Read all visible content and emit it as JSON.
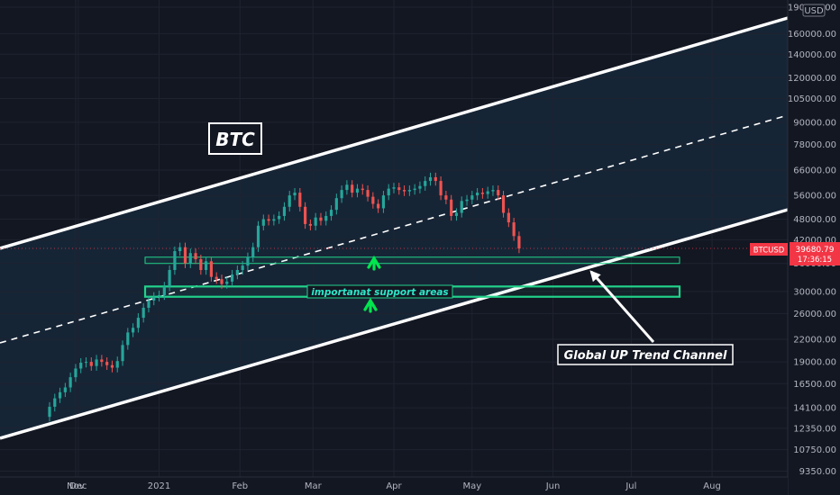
{
  "chart_data": {
    "type": "candlestick",
    "title": "BTC",
    "symbol": "BTCUSD",
    "currency": "USD",
    "last_price": "39680.79",
    "countdown": "17:36:15",
    "y_scale": "log",
    "ylim": [
      9000,
      190000
    ],
    "y_ticks": [
      9350,
      10750,
      12350,
      14100,
      16500,
      19000,
      22000,
      26000,
      30000,
      36000,
      42000,
      48000,
      56000,
      66000,
      78000,
      90000,
      105000,
      120000,
      140000,
      160000,
      190000
    ],
    "y_tick_labels": [
      "9350.00",
      "10750.00",
      "12350.00",
      "14100.00",
      "16500.00",
      "19000.00",
      "22000.00",
      "26000.00",
      "30000.00",
      "36000.00",
      "42000.00",
      "48000.00",
      "56000.00",
      "66000.00",
      "78000.00",
      "90000.00",
      "105000.00",
      "120000.00",
      "140000.00",
      "160000.00",
      "190000.00"
    ],
    "x_ticks": [
      {
        "date": "2020-11-30",
        "label": "Nov"
      },
      {
        "date": "2020-12-01",
        "label": "Dec"
      },
      {
        "date": "2021-01-01",
        "label": "2021"
      },
      {
        "date": "2021-02-01",
        "label": "Feb"
      },
      {
        "date": "2021-03-01",
        "label": "Mar"
      },
      {
        "date": "2021-04-01",
        "label": "Apr"
      },
      {
        "date": "2021-05-01",
        "label": "May"
      },
      {
        "date": "2021-06-01",
        "label": "Jun"
      },
      {
        "date": "2021-07-01",
        "label": "Jul"
      },
      {
        "date": "2021-08-01",
        "label": "Aug"
      }
    ],
    "xlim": [
      "2020-11-01",
      "2021-08-30"
    ],
    "series_close": [
      [
        "2020-11-18",
        13300
      ],
      [
        "2020-11-20",
        14200
      ],
      [
        "2020-11-22",
        15000
      ],
      [
        "2020-11-24",
        15600
      ],
      [
        "2020-11-26",
        16100
      ],
      [
        "2020-11-28",
        17200
      ],
      [
        "2020-11-30",
        18200
      ],
      [
        "2020-12-02",
        18900
      ],
      [
        "2020-12-04",
        19000
      ],
      [
        "2020-12-06",
        18500
      ],
      [
        "2020-12-08",
        19300
      ],
      [
        "2020-12-10",
        19000
      ],
      [
        "2020-12-12",
        18600
      ],
      [
        "2020-12-14",
        18300
      ],
      [
        "2020-12-16",
        19100
      ],
      [
        "2020-12-18",
        21200
      ],
      [
        "2020-12-20",
        23000
      ],
      [
        "2020-12-22",
        23700
      ],
      [
        "2020-12-24",
        25300
      ],
      [
        "2020-12-26",
        27000
      ],
      [
        "2020-12-28",
        28300
      ],
      [
        "2020-12-30",
        29000
      ],
      [
        "2021-01-01",
        29300
      ],
      [
        "2021-01-03",
        31000
      ],
      [
        "2021-01-05",
        34500
      ],
      [
        "2021-01-07",
        39000
      ],
      [
        "2021-01-09",
        40000
      ],
      [
        "2021-01-11",
        36000
      ],
      [
        "2021-01-13",
        38500
      ],
      [
        "2021-01-15",
        37000
      ],
      [
        "2021-01-17",
        34500
      ],
      [
        "2021-01-19",
        36500
      ],
      [
        "2021-01-21",
        33000
      ],
      [
        "2021-01-23",
        32500
      ],
      [
        "2021-01-25",
        31500
      ],
      [
        "2021-01-27",
        32000
      ],
      [
        "2021-01-29",
        33500
      ],
      [
        "2021-01-31",
        34500
      ],
      [
        "2021-02-02",
        35500
      ],
      [
        "2021-02-04",
        37500
      ],
      [
        "2021-02-06",
        40000
      ],
      [
        "2021-02-08",
        46000
      ],
      [
        "2021-02-10",
        48000
      ],
      [
        "2021-02-12",
        47500
      ],
      [
        "2021-02-14",
        48000
      ],
      [
        "2021-02-16",
        49000
      ],
      [
        "2021-02-18",
        52000
      ],
      [
        "2021-02-20",
        56000
      ],
      [
        "2021-02-22",
        57000
      ],
      [
        "2021-02-24",
        52000
      ],
      [
        "2021-02-26",
        46500
      ],
      [
        "2021-02-28",
        46000
      ],
      [
        "2021-03-02",
        48500
      ],
      [
        "2021-03-04",
        47500
      ],
      [
        "2021-03-06",
        49000
      ],
      [
        "2021-03-08",
        51000
      ],
      [
        "2021-03-10",
        55000
      ],
      [
        "2021-03-12",
        58000
      ],
      [
        "2021-03-14",
        60000
      ],
      [
        "2021-03-16",
        57000
      ],
      [
        "2021-03-18",
        58500
      ],
      [
        "2021-03-20",
        58000
      ],
      [
        "2021-03-22",
        55500
      ],
      [
        "2021-03-24",
        53000
      ],
      [
        "2021-03-26",
        51500
      ],
      [
        "2021-03-28",
        56000
      ],
      [
        "2021-03-30",
        58500
      ],
      [
        "2021-04-01",
        59000
      ],
      [
        "2021-04-03",
        58000
      ],
      [
        "2021-04-05",
        57500
      ],
      [
        "2021-04-07",
        58000
      ],
      [
        "2021-04-09",
        58500
      ],
      [
        "2021-04-11",
        59500
      ],
      [
        "2021-04-13",
        61500
      ],
      [
        "2021-04-15",
        63000
      ],
      [
        "2021-04-17",
        61500
      ],
      [
        "2021-04-19",
        56000
      ],
      [
        "2021-04-21",
        54500
      ],
      [
        "2021-04-23",
        49000
      ],
      [
        "2021-04-25",
        50000
      ],
      [
        "2021-04-27",
        54000
      ],
      [
        "2021-04-29",
        54500
      ],
      [
        "2021-05-01",
        56000
      ],
      [
        "2021-05-03",
        57000
      ],
      [
        "2021-05-05",
        56500
      ],
      [
        "2021-05-07",
        57500
      ],
      [
        "2021-05-09",
        58000
      ],
      [
        "2021-05-11",
        56000
      ],
      [
        "2021-05-13",
        50000
      ],
      [
        "2021-05-15",
        47000
      ],
      [
        "2021-05-17",
        43000
      ],
      [
        "2021-05-19",
        39680
      ]
    ],
    "support_zones": [
      {
        "from": 36000,
        "to": 37500,
        "label": ""
      },
      {
        "from": 29000,
        "to": 31000,
        "label": "importanat support areas"
      }
    ],
    "annotations": {
      "channel_label": "Global UP Trend Channel",
      "support_label": "importanat support areas"
    },
    "colors": {
      "up": "#26a69a",
      "down": "#ef5350",
      "zone": "#21d28a",
      "arrow": "#00e64d",
      "background": "#131722",
      "channel_fill": "#1a2a3a",
      "price_tag": "#f23645"
    }
  }
}
